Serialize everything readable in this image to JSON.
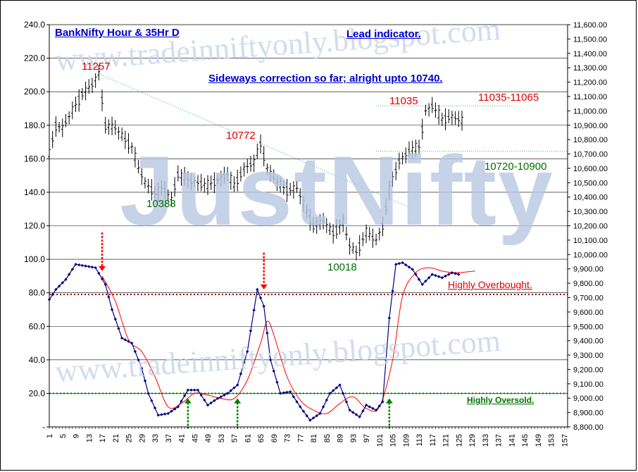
{
  "chart_data": {
    "type": "line",
    "title": "BankNifty Hour & 35Hr D",
    "subtitle": "Lead indicator.",
    "watermarks": [
      "www.tradeinniftyonly.blogspot.com",
      "JustNifty",
      "www.tradeinniftyonly.blogspot.com"
    ],
    "left_axis": {
      "ticks": [
        "240.0",
        "220.0",
        "200.0",
        "180.0",
        "160.0",
        "140.0",
        "120.0",
        "100.0",
        "80.0",
        "60.0",
        "40.0",
        "20.0",
        "-"
      ],
      "ylim": [
        0,
        240
      ]
    },
    "right_axis": {
      "ticks": [
        "11,600.00",
        "11,500.00",
        "11,400.00",
        "11,300.00",
        "11,200.00",
        "11,100.00",
        "11,000.00",
        "10,900.00",
        "10,800.00",
        "10,700.00",
        "10,600.00",
        "10,500.00",
        "10,400.00",
        "10,300.00",
        "10,200.00",
        "10,100.00",
        "10,000.00",
        "9,900.00",
        "9,800.00",
        "9,700.00",
        "9,600.00",
        "9,500.00",
        "9,400.00",
        "9,300.00",
        "9,200.00",
        "9,100.00",
        "9,000.00",
        "8,900.00",
        "8,800.00"
      ],
      "ylim": [
        8800,
        11600
      ]
    },
    "x_axis": {
      "ticks": [
        "1",
        "5",
        "9",
        "13",
        "17",
        "21",
        "25",
        "29",
        "33",
        "37",
        "41",
        "45",
        "49",
        "53",
        "57",
        "61",
        "65",
        "69",
        "73",
        "77",
        "81",
        "85",
        "89",
        "93",
        "97",
        "101",
        "105",
        "109",
        "113",
        "117",
        "121",
        "125",
        "129",
        "133",
        "137",
        "141",
        "145",
        "149",
        "153",
        "157"
      ],
      "xlim": [
        1,
        158
      ]
    },
    "grid": true,
    "colors": {
      "price_bars": "#000000",
      "oscillator": "#000080",
      "signal": "#ff0000",
      "overbought_line": "#990000",
      "oversold_line": "#008000",
      "trendline": "#3cb371",
      "arrow_down": "#ff0000",
      "arrow_up": "#008000"
    },
    "levels": {
      "overbought": 79,
      "oversold": 20,
      "resistance_band": 11035,
      "support_band": 10720
    },
    "series": [
      {
        "kind": "hourly-price",
        "anchors_x": [
          1,
          3,
          5,
          8,
          11,
          14,
          16,
          18,
          21,
          24,
          26,
          28,
          30,
          33,
          36,
          38,
          40,
          43,
          46,
          49,
          52,
          55,
          57,
          60,
          63,
          65,
          67,
          70,
          73,
          76,
          79,
          81,
          84,
          87,
          90,
          92,
          94,
          97,
          100,
          102,
          104,
          107,
          110,
          113,
          115,
          117,
          120,
          123,
          126
        ],
        "anchors_y": [
          10700,
          10900,
          10880,
          11000,
          11120,
          11180,
          11257,
          10900,
          10880,
          10800,
          10750,
          10600,
          10500,
          10430,
          10450,
          10388,
          10560,
          10520,
          10500,
          10480,
          10520,
          10560,
          10480,
          10600,
          10640,
          10772,
          10600,
          10500,
          10450,
          10460,
          10300,
          10200,
          10230,
          10150,
          10220,
          10060,
          10018,
          10150,
          10100,
          10200,
          10450,
          10650,
          10720,
          10750,
          11000,
          11035,
          10940,
          10960,
          10930
        ]
      },
      {
        "kind": "oscillator",
        "anchors_x": [
          1,
          3,
          6,
          9,
          12,
          15,
          18,
          20,
          23,
          26,
          29,
          31,
          34,
          37,
          40,
          43,
          46,
          49,
          52,
          55,
          58,
          61,
          64,
          66,
          68,
          71,
          74,
          77,
          80,
          83,
          86,
          89,
          92,
          95,
          97,
          100,
          102,
          104,
          106,
          108,
          111,
          114,
          117,
          120,
          123,
          125
        ],
        "anchors_y": [
          76,
          82,
          88,
          97,
          96,
          95,
          85,
          70,
          53,
          50,
          35,
          20,
          7,
          8,
          12,
          22,
          22,
          13,
          17,
          20,
          25,
          45,
          82,
          72,
          40,
          20,
          21,
          12,
          4,
          8,
          20,
          25,
          10,
          6,
          13,
          10,
          15,
          65,
          97,
          98,
          94,
          85,
          91,
          89,
          92,
          91
        ]
      },
      {
        "kind": "signal",
        "anchors_x": [
          17,
          21,
          25,
          29,
          33,
          37,
          41,
          45,
          49,
          53,
          57,
          61,
          65,
          67,
          69,
          73,
          77,
          81,
          85,
          89,
          93,
          97,
          101,
          105,
          108,
          112,
          116,
          120,
          124,
          130
        ],
        "anchors_y": [
          90,
          75,
          52,
          45,
          30,
          12,
          14,
          20,
          19,
          17,
          17,
          28,
          50,
          63,
          55,
          30,
          16,
          10,
          8,
          14,
          18,
          11,
          12,
          40,
          78,
          92,
          95,
          93,
          92,
          93
        ]
      }
    ],
    "annotations": {
      "title_note": "Sideways correction so far; alright upto 10740.",
      "price_11257": "11257",
      "price_10388": "10388",
      "price_10772": "10772",
      "price_10018": "10018",
      "price_11035": "11035",
      "range_top": "11035-11065",
      "range_mid": "10720-10900",
      "overbought": "Highly Overbought.",
      "oversold": "Highly Oversold."
    }
  }
}
